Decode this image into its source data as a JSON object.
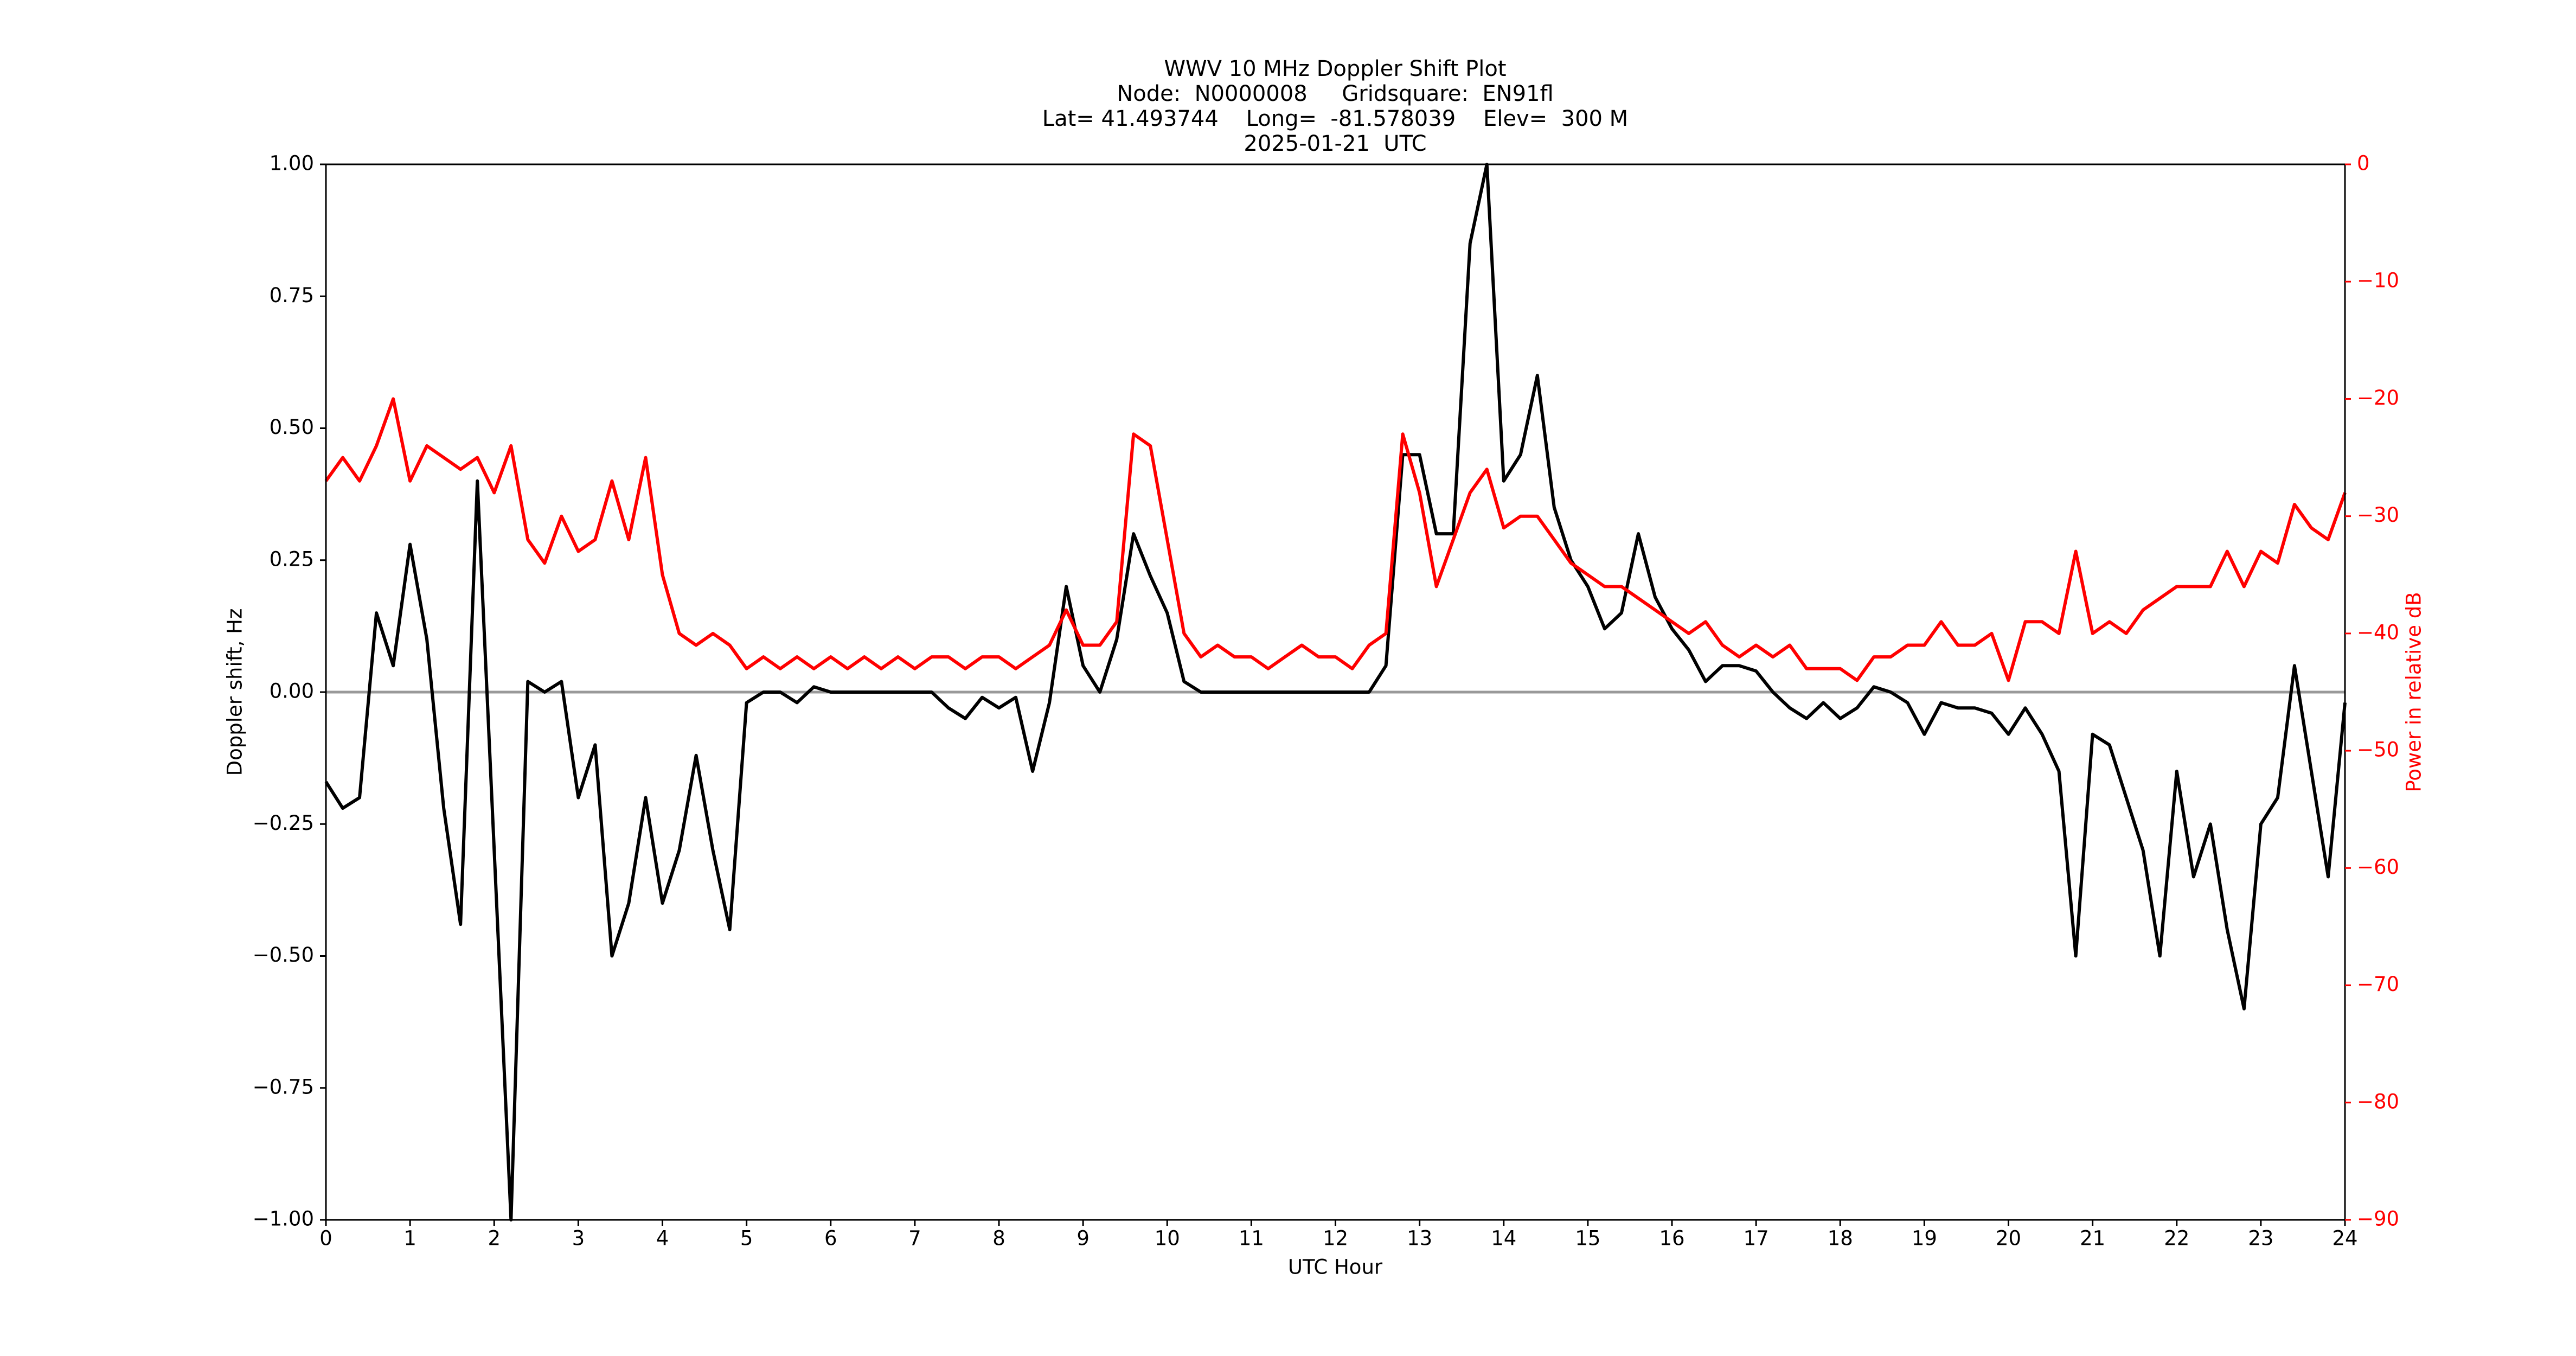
{
  "chart_data": {
    "type": "line",
    "title": [
      "WWV 10 MHz Doppler Shift Plot",
      "Node:  N0000008     Gridsquare:  EN91fl",
      "Lat= 41.493744    Long=  -81.578039    Elev=  300 M",
      "2025-01-21  UTC"
    ],
    "xlabel": "UTC Hour",
    "ylabel": "Doppler shift, Hz",
    "y2label": "Power in relative dB",
    "x": [
      0,
      0.2,
      0.4,
      0.6,
      0.8,
      1,
      1.2,
      1.4,
      1.6,
      1.8,
      2,
      2.2,
      2.4,
      2.6,
      2.8,
      3,
      3.2,
      3.4,
      3.6,
      3.8,
      4,
      4.2,
      4.4,
      4.6,
      4.8,
      5,
      5.2,
      5.4,
      5.6,
      5.8,
      6,
      6.2,
      6.4,
      6.6,
      6.8,
      7,
      7.2,
      7.4,
      7.6,
      7.8,
      8,
      8.2,
      8.4,
      8.6,
      8.8,
      9,
      9.2,
      9.4,
      9.6,
      9.8,
      10,
      10.2,
      10.4,
      10.6,
      10.8,
      11,
      11.2,
      11.4,
      11.6,
      11.8,
      12,
      12.2,
      12.4,
      12.6,
      12.8,
      13,
      13.2,
      13.4,
      13.6,
      13.8,
      14,
      14.2,
      14.4,
      14.6,
      14.8,
      15,
      15.2,
      15.4,
      15.6,
      15.8,
      16,
      16.2,
      16.4,
      16.6,
      16.8,
      17,
      17.2,
      17.4,
      17.6,
      17.8,
      18,
      18.2,
      18.4,
      18.6,
      18.8,
      19,
      19.2,
      19.4,
      19.6,
      19.8,
      20,
      20.2,
      20.4,
      20.6,
      20.8,
      21,
      21.2,
      21.4,
      21.6,
      21.8,
      22,
      22.2,
      22.4,
      22.6,
      22.8,
      23,
      23.2,
      23.4,
      23.6,
      23.8,
      24
    ],
    "series": [
      {
        "name": "Doppler shift",
        "color": "#000000",
        "axis": "y",
        "values": [
          -0.17,
          -0.22,
          -0.2,
          0.15,
          0.05,
          0.28,
          0.1,
          -0.22,
          -0.44,
          0.4,
          -0.3,
          -1.0,
          0.02,
          0,
          0.02,
          -0.2,
          -0.1,
          -0.5,
          -0.4,
          -0.2,
          -0.4,
          -0.3,
          -0.12,
          -0.3,
          -0.45,
          -0.02,
          0,
          0,
          -0.02,
          0.01,
          0,
          0,
          0,
          0,
          0,
          0,
          0,
          -0.03,
          -0.05,
          -0.01,
          -0.03,
          -0.01,
          -0.15,
          -0.02,
          0.2,
          0.05,
          0,
          0.1,
          0.3,
          0.22,
          0.15,
          0.02,
          0,
          0,
          0,
          0,
          0,
          0,
          0,
          0,
          0,
          0,
          0,
          0.05,
          0.45,
          0.45,
          0.3,
          0.3,
          0.85,
          1.0,
          0.4,
          0.45,
          0.6,
          0.35,
          0.25,
          0.2,
          0.12,
          0.15,
          0.3,
          0.18,
          0.12,
          0.08,
          0.02,
          0.05,
          0.05,
          0.04,
          0,
          -0.03,
          -0.05,
          -0.02,
          -0.05,
          -0.03,
          0.01,
          0,
          -0.02,
          -0.08,
          -0.02,
          -0.03,
          -0.03,
          -0.04,
          -0.08,
          -0.03,
          -0.08,
          -0.15,
          -0.5,
          -0.08,
          -0.1,
          -0.2,
          -0.3,
          -0.5,
          -0.15,
          -0.35,
          -0.25,
          -0.45,
          -0.6,
          -0.25,
          -0.2,
          0.05,
          -0.15,
          -0.35,
          -0.02
        ]
      },
      {
        "name": "Power",
        "color": "#ff0000",
        "axis": "y2",
        "values": [
          -27,
          -25,
          -27,
          -24,
          -20,
          -27,
          -24,
          -25,
          -26,
          -25,
          -28,
          -24,
          -32,
          -34,
          -30,
          -33,
          -32,
          -27,
          -32,
          -25,
          -35,
          -40,
          -41,
          -40,
          -41,
          -43,
          -42,
          -43,
          -42,
          -43,
          -42,
          -43,
          -42,
          -43,
          -42,
          -43,
          -42,
          -42,
          -43,
          -42,
          -42,
          -43,
          -42,
          -41,
          -38,
          -41,
          -41,
          -39,
          -23,
          -24,
          -32,
          -40,
          -42,
          -41,
          -42,
          -42,
          -43,
          -42,
          -41,
          -42,
          -42,
          -43,
          -41,
          -40,
          -23,
          -28,
          -36,
          -32,
          -28,
          -26,
          -31,
          -30,
          -30,
          -32,
          -34,
          -35,
          -36,
          -36,
          -37,
          -38,
          -39,
          -40,
          -39,
          -41,
          -42,
          -41,
          -42,
          -41,
          -43,
          -43,
          -43,
          -44,
          -42,
          -42,
          -41,
          -41,
          -39,
          -41,
          -41,
          -40,
          -44,
          -39,
          -39,
          -40,
          -33,
          -40,
          -39,
          -40,
          -38,
          -37,
          -36,
          -36,
          -36,
          -33,
          -36,
          -33,
          -34,
          -29,
          -31,
          -32,
          -28
        ]
      }
    ],
    "xlim": [
      0,
      24
    ],
    "xticks": [
      0,
      1,
      2,
      3,
      4,
      5,
      6,
      7,
      8,
      9,
      10,
      11,
      12,
      13,
      14,
      15,
      16,
      17,
      18,
      19,
      20,
      21,
      22,
      23,
      24
    ],
    "ylim": [
      -1,
      1
    ],
    "yticks": [
      {
        "value": -1,
        "label": "−1.00"
      },
      {
        "value": -0.75,
        "label": "−0.75"
      },
      {
        "value": -0.5,
        "label": "−0.50"
      },
      {
        "value": -0.25,
        "label": "−0.25"
      },
      {
        "value": 0,
        "label": "0.00"
      },
      {
        "value": 0.25,
        "label": "0.25"
      },
      {
        "value": 0.5,
        "label": "0.50"
      },
      {
        "value": 0.75,
        "label": "0.75"
      },
      {
        "value": 1,
        "label": "1.00"
      }
    ],
    "y2lim": [
      -90,
      0
    ],
    "y2ticks": [
      {
        "value": -90,
        "label": "−90"
      },
      {
        "value": -80,
        "label": "−80"
      },
      {
        "value": -70,
        "label": "−70"
      },
      {
        "value": -60,
        "label": "−60"
      },
      {
        "value": -50,
        "label": "−50"
      },
      {
        "value": -40,
        "label": "−40"
      },
      {
        "value": -30,
        "label": "−30"
      },
      {
        "value": -20,
        "label": "−20"
      },
      {
        "value": -10,
        "label": "−10"
      },
      0
    ],
    "hlines": [
      0
    ],
    "hline_color": "#999999",
    "grid": false
  }
}
